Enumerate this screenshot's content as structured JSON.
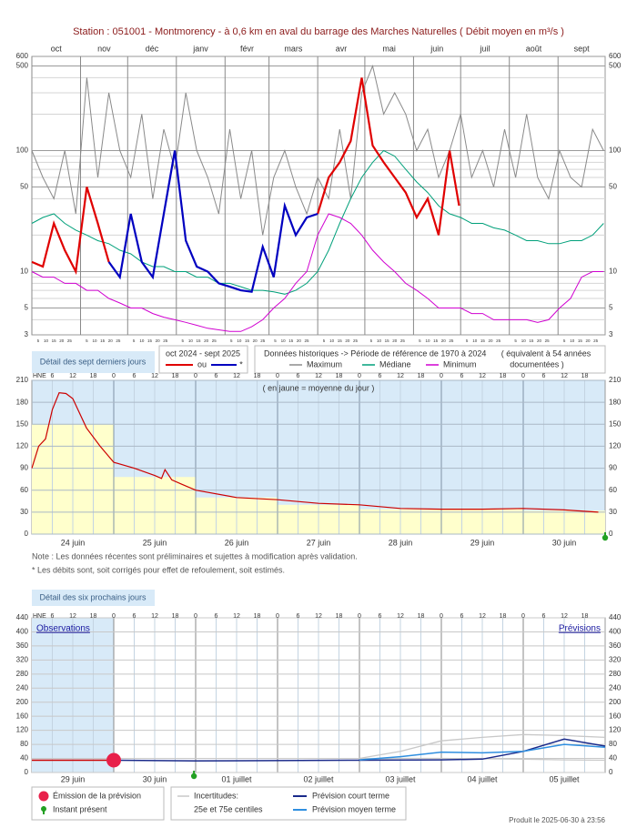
{
  "chart_data": [
    {
      "type": "line",
      "log_scale": true,
      "grid": true,
      "title": "Station : 051001     -   Montmorency - à 0,6 km en aval du barrage des Marches Naturelles   ( Débit moyen en m³/s )",
      "categories": [
        "oct",
        "nov",
        "déc",
        "janv",
        "févr",
        "mars",
        "avr",
        "mai",
        "juin",
        "juil",
        "août",
        "sept"
      ],
      "month_starts": [
        0,
        31,
        61,
        92,
        123,
        151,
        182,
        212,
        243,
        273,
        304,
        335
      ],
      "day_ticks": [
        5,
        10,
        15,
        20,
        25
      ],
      "xlim": [
        0,
        365
      ],
      "ylim": [
        3,
        600
      ],
      "yticks": [
        3,
        5,
        10,
        50,
        100,
        500,
        600
      ],
      "minor_yticks": [
        4,
        6,
        7,
        8,
        9,
        20,
        30,
        40,
        60,
        70,
        80,
        90,
        200,
        300,
        400
      ],
      "x": [
        0,
        7,
        14,
        21,
        28,
        35,
        42,
        49,
        56,
        63,
        70,
        77,
        84,
        91,
        98,
        105,
        112,
        119,
        126,
        133,
        140,
        147,
        154,
        161,
        168,
        175,
        182,
        189,
        196,
        203,
        210,
        217,
        224,
        231,
        238,
        245,
        252,
        259,
        266,
        273,
        280,
        287,
        294,
        301,
        308,
        315,
        322,
        329,
        336,
        343,
        350,
        357,
        364
      ],
      "series": [
        {
          "name": "Maximum",
          "color": "#8a8a8a",
          "values": [
            100,
            60,
            40,
            100,
            30,
            400,
            60,
            300,
            100,
            60,
            200,
            40,
            150,
            70,
            300,
            100,
            60,
            30,
            150,
            40,
            100,
            20,
            60,
            100,
            50,
            30,
            60,
            40,
            150,
            40,
            300,
            500,
            200,
            300,
            200,
            100,
            150,
            60,
            100,
            200,
            60,
            100,
            50,
            150,
            60,
            200,
            60,
            40,
            100,
            60,
            50,
            150,
            100
          ]
        },
        {
          "name": "Médiane",
          "color": "#00a07a",
          "values": [
            25,
            28,
            30,
            25,
            22,
            20,
            18,
            17,
            15,
            14,
            12,
            11,
            11,
            10,
            10,
            9,
            9,
            8,
            8,
            7.5,
            7,
            7,
            6.8,
            6.5,
            7,
            8,
            10,
            15,
            25,
            40,
            60,
            80,
            100,
            90,
            70,
            55,
            45,
            35,
            30,
            28,
            25,
            25,
            23,
            22,
            20,
            18,
            18,
            17,
            17,
            18,
            18,
            20,
            25
          ]
        },
        {
          "name": "Minimum",
          "color": "#d000d0",
          "values": [
            10,
            9,
            9,
            8,
            8,
            7,
            7,
            6,
            5.5,
            5,
            5,
            4.5,
            4.2,
            4,
            3.8,
            3.6,
            3.4,
            3.3,
            3.2,
            3.2,
            3.5,
            4,
            5,
            6,
            8,
            10,
            20,
            30,
            28,
            25,
            20,
            15,
            12,
            10,
            8,
            7,
            6,
            5,
            5,
            5,
            4.5,
            4.5,
            4,
            4,
            4,
            4,
            3.8,
            4,
            5,
            6,
            9,
            10,
            10
          ]
        }
      ],
      "current": {
        "period": "oct 2024 - sept 2025",
        "between": "ou",
        "note": "*",
        "x": [
          0,
          7,
          14,
          21,
          28,
          35,
          42,
          49,
          56,
          63,
          70,
          77,
          84,
          91,
          98,
          105,
          112,
          119,
          126,
          133,
          140,
          147,
          154,
          161,
          168,
          175,
          182,
          189,
          196,
          203,
          210,
          217,
          224,
          231,
          238,
          245,
          252,
          259,
          266,
          272
        ],
        "series": [
          {
            "color": "#e00000",
            "values": [
              12,
              11,
              25,
              15,
              10,
              50,
              25,
              12,
              null,
              null,
              null,
              null,
              null,
              null,
              null,
              null,
              null,
              null,
              null,
              null,
              null,
              null,
              null,
              null,
              null,
              null,
              30,
              60,
              80,
              120,
              400,
              110,
              80,
              60,
              45,
              28,
              40,
              20,
              100,
              35
            ]
          },
          {
            "color": "#0000c0",
            "values": [
              null,
              null,
              null,
              null,
              null,
              null,
              null,
              12,
              9,
              30,
              12,
              9,
              30,
              100,
              18,
              11,
              10,
              8,
              7.5,
              7,
              6.8,
              16,
              9,
              35,
              20,
              28,
              30,
              null,
              null,
              null,
              null,
              null,
              null,
              null,
              null,
              null,
              null,
              null,
              null,
              null
            ]
          }
        ]
      },
      "historical_legend": "Données historiques -> Période de référence  de 1970 à 2024",
      "historical_note": [
        "( équivalent à 54 années",
        "documentées )"
      ],
      "panel_link": "Détail des sept derniers jours"
    },
    {
      "type": "line",
      "grid": true,
      "annotation": "( en jaune = moyenne du jour )",
      "hour_unit": "HNE",
      "hours": [
        6,
        12,
        18,
        0
      ],
      "categories": [
        "24 juin",
        "25 juin",
        "26 juin",
        "27 juin",
        "28 juin",
        "29 juin",
        "30 juin"
      ],
      "daily_means": {
        "color": "#ffffcc",
        "values": [
          150,
          78,
          50,
          40,
          34,
          35,
          32
        ]
      },
      "xlim": [
        0,
        168
      ],
      "ylim": [
        0,
        210
      ],
      "yticks": [
        0,
        30,
        60,
        90,
        120,
        150,
        180,
        210
      ],
      "x": [
        0,
        2,
        4,
        6,
        8,
        10,
        12,
        16,
        20,
        24,
        30,
        36,
        38,
        39,
        41,
        44,
        48,
        60,
        72,
        84,
        96,
        108,
        120,
        132,
        144,
        156,
        166
      ],
      "series": [
        {
          "color": "#cc0000",
          "values": [
            90,
            120,
            130,
            170,
            193,
            192,
            185,
            145,
            120,
            98,
            90,
            80,
            76,
            88,
            74,
            68,
            60,
            50,
            47,
            42,
            40,
            35,
            34,
            34,
            35,
            33,
            30
          ]
        }
      ],
      "present_x": 168,
      "present_color": "#22a022",
      "notes": [
        "Note : Les données récentes sont préliminaires et sujettes à modification après validation.",
        "* Les débits sont, soit corrigés pour effet de refoulement, soit estimés."
      ]
    },
    {
      "type": "line",
      "grid": true,
      "panel_link": "Détail des six prochains jours",
      "observations": "Observations",
      "forecasts": "Prévisions",
      "hour_unit": "HNE",
      "hours": [
        6,
        12,
        18,
        0
      ],
      "categories": [
        "29 juin",
        "30 juin",
        "01 juillet",
        "02 juillet",
        "03 juillet",
        "04 juillet",
        "05 juillet"
      ],
      "xlim": [
        0,
        168
      ],
      "ylim": [
        0,
        440
      ],
      "yticks": [
        0,
        40,
        80,
        120,
        160,
        200,
        240,
        280,
        320,
        360,
        400,
        440
      ],
      "observed": {
        "color": "#cc0000",
        "x": [
          0,
          24
        ],
        "values": [
          35,
          35
        ]
      },
      "emission": {
        "label": "Émission de la prévision",
        "color": "#e8204a",
        "x": 24,
        "value": 35
      },
      "present": {
        "label": "Instant présent",
        "color": "#22a022",
        "x": 47.5
      },
      "uncertainty": {
        "label": "Incertitudes:",
        "name": "25e et 75e centiles",
        "color": "#c8c8c8",
        "x": [
          96,
          108,
          120,
          132,
          144,
          156,
          168
        ],
        "p25": [
          38,
          40,
          40,
          39,
          38,
          36,
          35
        ],
        "p75": [
          40,
          60,
          90,
          100,
          108,
          105,
          100
        ]
      },
      "series": [
        {
          "name": "Prévision court terme",
          "color": "#1a2a8a",
          "x": [
            24,
            48,
            72,
            96,
            120,
            132,
            144,
            156,
            168
          ],
          "values": [
            35,
            33,
            34,
            35,
            36,
            38,
            60,
            95,
            75
          ]
        },
        {
          "name": "Prévision moyen terme",
          "color": "#2f8fe0",
          "x": [
            96,
            108,
            120,
            132,
            144,
            156,
            168
          ],
          "values": [
            36,
            45,
            58,
            56,
            60,
            80,
            72
          ]
        }
      ],
      "footer": "Produit le 2025-06-30 à 23:56"
    }
  ]
}
